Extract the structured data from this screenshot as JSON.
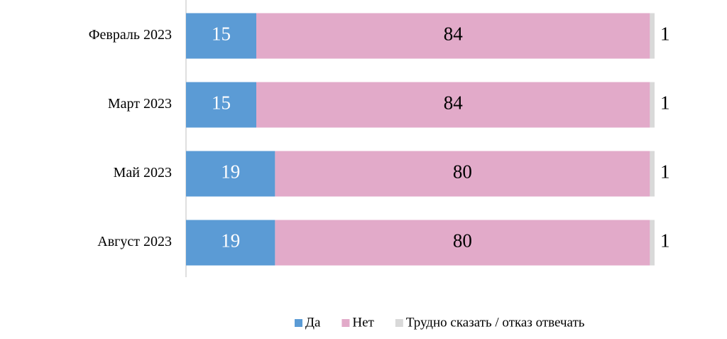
{
  "chart_data": {
    "type": "bar",
    "orientation": "horizontal",
    "stacked": true,
    "categories": [
      "Февраль 2023",
      "Март 2023",
      "Май 2023",
      "Август 2023"
    ],
    "series": [
      {
        "name": "Да",
        "color": "#5b9bd5",
        "values": [
          15,
          15,
          19,
          19
        ]
      },
      {
        "name": "Нет",
        "color": "#e2aac9",
        "values": [
          84,
          84,
          80,
          80
        ]
      },
      {
        "name": "Трудно сказать / отказ отвечать",
        "color": "#d9d9d9",
        "values": [
          1,
          1,
          1,
          1
        ]
      }
    ],
    "xlim": [
      0,
      100
    ]
  }
}
